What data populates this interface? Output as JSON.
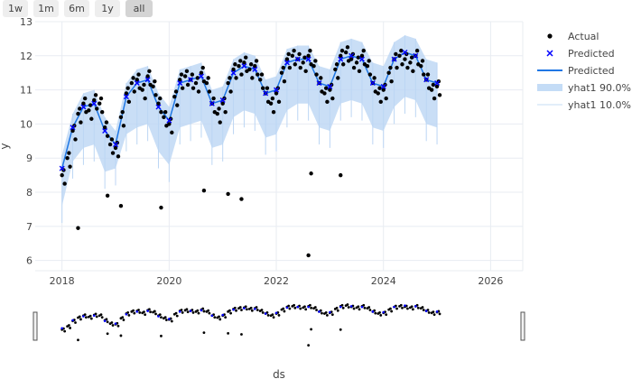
{
  "range_selector": {
    "buttons": [
      "1w",
      "1m",
      "6m",
      "1y",
      "all"
    ],
    "active": "all"
  },
  "legend": {
    "items": [
      {
        "label": "Actual",
        "kind": "dot",
        "color": "#000000"
      },
      {
        "label": "Predicted",
        "kind": "x",
        "color": "#0000ff"
      },
      {
        "label": "Predicted",
        "kind": "line",
        "color": "#1f77e4"
      },
      {
        "label": "yhat1 90.0%",
        "kind": "band",
        "color": "#c4dcf6"
      },
      {
        "label": "yhat1 10.0%",
        "kind": "thin",
        "color": "#c4dcf6"
      }
    ]
  },
  "colors": {
    "actual": "#000000",
    "predicted": "#0000ff",
    "predicted_line": "#1f77e4",
    "band": "#bcd6f4",
    "grid": "#e8ecf2"
  },
  "chart_data": {
    "type": "scatter",
    "xlabel": "ds",
    "ylabel": "y",
    "x_range": [
      2017.5,
      2026.6
    ],
    "y_range": [
      5.7,
      13.0
    ],
    "x_ticks": [
      2018,
      2020,
      2022,
      2024,
      2026
    ],
    "x_tick_labels": [
      "2018",
      "2020",
      "2022",
      "2024",
      "2026"
    ],
    "y_ticks": [
      6,
      7,
      8,
      9,
      10,
      11,
      12,
      13
    ],
    "grid": true,
    "legend_position": "top-right",
    "series": [
      {
        "name": "Actual",
        "mode": "markers",
        "x": [
          2018.0,
          2018.1,
          2018.2,
          2018.3,
          2018.4,
          2018.5,
          2018.6,
          2018.7,
          2018.8,
          2018.9,
          2019.0,
          2019.1,
          2019.2,
          2019.3,
          2019.4,
          2019.5,
          2019.6,
          2019.7,
          2019.8,
          2019.9,
          2020.0,
          2020.1,
          2020.2,
          2020.3,
          2020.4,
          2020.5,
          2020.6,
          2020.7,
          2020.8,
          2020.9,
          2021.0,
          2021.1,
          2021.2,
          2021.3,
          2021.4,
          2021.5,
          2021.6,
          2021.7,
          2021.8,
          2021.9,
          2022.0,
          2022.1,
          2022.2,
          2022.3,
          2022.4,
          2022.5,
          2022.6,
          2022.7,
          2022.8,
          2022.9,
          2023.0,
          2023.1,
          2023.2,
          2023.3,
          2023.4,
          2023.5,
          2023.6,
          2023.7,
          2023.8,
          2023.9,
          2024.0,
          2024.1,
          2024.2,
          2024.3,
          2024.4,
          2024.5,
          2024.6,
          2024.7,
          2024.8,
          2024.9,
          2025.0
        ],
        "y": [
          8.5,
          9.0,
          9.8,
          10.3,
          10.6,
          10.4,
          10.7,
          10.6,
          9.9,
          9.4,
          9.3,
          10.2,
          10.9,
          11.2,
          11.3,
          11.0,
          11.4,
          11.1,
          10.6,
          10.2,
          10.0,
          10.8,
          11.3,
          11.4,
          11.3,
          11.2,
          11.5,
          11.2,
          10.6,
          10.3,
          10.6,
          11.2,
          11.6,
          11.7,
          11.8,
          11.6,
          11.7,
          11.3,
          10.9,
          10.6,
          10.9,
          11.5,
          11.9,
          12.0,
          11.9,
          11.8,
          12.0,
          11.7,
          11.2,
          10.9,
          11.0,
          11.6,
          12.0,
          12.1,
          11.9,
          11.8,
          12.0,
          11.7,
          11.2,
          10.9,
          11.0,
          11.5,
          11.9,
          12.0,
          11.9,
          11.8,
          12.0,
          11.7,
          11.3,
          11.0,
          11.1
        ]
      },
      {
        "name": "Predicted",
        "mode": "line+markers",
        "x": [
          2018.0,
          2018.2,
          2018.4,
          2018.6,
          2018.8,
          2019.0,
          2019.2,
          2019.4,
          2019.6,
          2019.8,
          2020.0,
          2020.2,
          2020.4,
          2020.6,
          2020.8,
          2021.0,
          2021.2,
          2021.4,
          2021.6,
          2021.8,
          2022.0,
          2022.2,
          2022.4,
          2022.6,
          2022.8,
          2023.0,
          2023.2,
          2023.4,
          2023.6,
          2023.8,
          2024.0,
          2024.2,
          2024.4,
          2024.6,
          2024.8,
          2025.0
        ],
        "y": [
          8.7,
          9.9,
          10.5,
          10.6,
          9.8,
          9.4,
          10.8,
          11.2,
          11.3,
          10.5,
          10.1,
          11.2,
          11.3,
          11.4,
          10.6,
          10.7,
          11.5,
          11.7,
          11.6,
          10.9,
          11.0,
          11.8,
          11.9,
          11.9,
          11.2,
          11.1,
          11.9,
          12.0,
          11.9,
          11.2,
          11.1,
          11.9,
          12.1,
          12.0,
          11.3,
          11.2
        ]
      },
      {
        "name": "yhat1 90.0%",
        "mode": "band-upper",
        "x": [
          2018.0,
          2018.2,
          2018.4,
          2018.6,
          2018.8,
          2019.0,
          2019.2,
          2019.4,
          2019.6,
          2019.8,
          2020.0,
          2020.2,
          2020.4,
          2020.6,
          2020.8,
          2021.0,
          2021.2,
          2021.4,
          2021.6,
          2021.8,
          2022.0,
          2022.2,
          2022.4,
          2022.6,
          2022.8,
          2023.0,
          2023.2,
          2023.4,
          2023.6,
          2023.8,
          2024.0,
          2024.2,
          2024.4,
          2024.6,
          2024.8,
          2025.0
        ],
        "y": [
          9.1,
          10.3,
          10.9,
          11.0,
          10.2,
          9.8,
          11.2,
          11.6,
          11.7,
          10.9,
          10.5,
          11.6,
          11.7,
          11.8,
          11.0,
          11.1,
          11.9,
          12.1,
          12.0,
          11.3,
          11.4,
          12.2,
          12.3,
          12.3,
          11.7,
          11.6,
          12.4,
          12.5,
          12.4,
          11.8,
          11.7,
          12.4,
          12.6,
          12.5,
          11.9,
          11.8
        ]
      },
      {
        "name": "yhat1 10.0%",
        "mode": "band-lower",
        "x": [
          2018.0,
          2018.2,
          2018.4,
          2018.6,
          2018.8,
          2019.0,
          2019.2,
          2019.4,
          2019.6,
          2019.8,
          2020.0,
          2020.2,
          2020.4,
          2020.6,
          2020.8,
          2021.0,
          2021.2,
          2021.4,
          2021.6,
          2021.8,
          2022.0,
          2022.2,
          2022.4,
          2022.6,
          2022.8,
          2023.0,
          2023.2,
          2023.4,
          2023.6,
          2023.8,
          2024.0,
          2024.2,
          2024.4,
          2024.6,
          2024.8,
          2025.0
        ],
        "y": [
          7.6,
          8.9,
          9.3,
          9.4,
          8.6,
          8.7,
          9.7,
          9.9,
          10.0,
          9.2,
          8.8,
          9.9,
          10.0,
          10.1,
          9.3,
          9.4,
          10.2,
          10.4,
          10.3,
          9.6,
          9.7,
          10.4,
          10.6,
          10.6,
          9.9,
          9.8,
          10.6,
          10.7,
          10.6,
          9.9,
          9.8,
          10.5,
          10.8,
          10.7,
          10.0,
          9.9
        ]
      },
      {
        "name": "Actual outliers",
        "mode": "markers",
        "x": [
          2018.3,
          2018.85,
          2019.1,
          2019.85,
          2020.65,
          2021.1,
          2021.35,
          2022.6,
          2022.65,
          2023.2
        ],
        "y": [
          6.95,
          7.9,
          7.6,
          7.55,
          8.05,
          7.95,
          7.8,
          6.15,
          8.55,
          8.5
        ]
      }
    ]
  }
}
